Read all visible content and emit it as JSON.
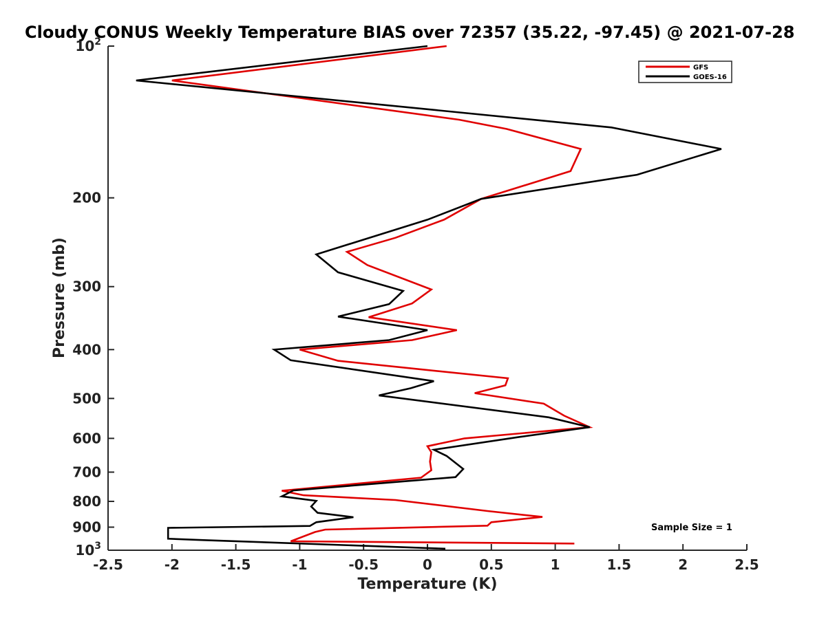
{
  "chart_data": {
    "type": "line",
    "title": "Cloudy CONUS Weekly Temperature BIAS over 72357 (35.22, -97.45) @ 2021-07-28",
    "xlabel": "Temperature (K)",
    "ylabel": "Pressure (mb)",
    "xlim": [
      -2.5,
      2.5
    ],
    "ylim": [
      100,
      1000
    ],
    "y_scale": "log",
    "y_reversed": true,
    "x_ticks": [
      "-2.5",
      "-2",
      "-1.5",
      "-1",
      "-0.5",
      "0",
      "0.5",
      "1",
      "1.5",
      "2",
      "2.5"
    ],
    "y_ticks": [
      {
        "value": 100,
        "base": "10",
        "exp": "2"
      },
      {
        "value": 200,
        "label": "200"
      },
      {
        "value": 300,
        "label": "300"
      },
      {
        "value": 400,
        "label": "400"
      },
      {
        "value": 500,
        "label": "500"
      },
      {
        "value": 600,
        "label": "600"
      },
      {
        "value": 700,
        "label": "700"
      },
      {
        "value": 800,
        "label": "800"
      },
      {
        "value": 900,
        "label": "900"
      },
      {
        "value": 1000,
        "base": "10",
        "exp": "3"
      }
    ],
    "legend_position": "top-right",
    "grid": false,
    "annotation": "Sample Size = 1",
    "series": [
      {
        "name": "GFS",
        "color": "#e00000",
        "points": [
          [
            0.15,
            100
          ],
          [
            -2.0,
            117
          ],
          [
            0.25,
            140
          ],
          [
            0.62,
            146
          ],
          [
            1.2,
            160
          ],
          [
            1.12,
            177
          ],
          [
            0.42,
            201
          ],
          [
            0.13,
            221
          ],
          [
            -0.25,
            240
          ],
          [
            -0.63,
            256
          ],
          [
            -0.47,
            272
          ],
          [
            0.03,
            304
          ],
          [
            -0.12,
            324
          ],
          [
            -0.46,
            345
          ],
          [
            0.23,
            366
          ],
          [
            -0.12,
            383
          ],
          [
            -1.0,
            400
          ],
          [
            -0.7,
            421
          ],
          [
            0.63,
            456
          ],
          [
            0.61,
            471
          ],
          [
            0.37,
            488
          ],
          [
            0.91,
            512
          ],
          [
            1.07,
            541
          ],
          [
            1.27,
            570
          ],
          [
            0.29,
            600
          ],
          [
            0.0,
            622
          ],
          [
            0.03,
            639
          ],
          [
            0.02,
            667
          ],
          [
            0.03,
            694
          ],
          [
            -0.05,
            718
          ],
          [
            -1.14,
            762
          ],
          [
            -0.97,
            778
          ],
          [
            -0.25,
            795
          ],
          [
            0.47,
            836
          ],
          [
            0.9,
            859
          ],
          [
            0.5,
            880
          ],
          [
            0.47,
            894
          ],
          [
            -0.8,
            910
          ],
          [
            -0.88,
            920
          ],
          [
            -1.07,
            960
          ],
          [
            1.15,
            970
          ]
        ]
      },
      {
        "name": "GOES-16",
        "color": "#000000",
        "points": [
          [
            0.0,
            100
          ],
          [
            -2.28,
            117
          ],
          [
            1.44,
            145
          ],
          [
            2.3,
            160
          ],
          [
            1.64,
            180
          ],
          [
            0.42,
            201
          ],
          [
            0.0,
            221
          ],
          [
            -0.87,
            259
          ],
          [
            -0.7,
            281
          ],
          [
            -0.19,
            306
          ],
          [
            -0.3,
            325
          ],
          [
            -0.7,
            344
          ],
          [
            0.0,
            366
          ],
          [
            -0.3,
            383
          ],
          [
            -1.2,
            400
          ],
          [
            -1.07,
            420
          ],
          [
            0.05,
            462
          ],
          [
            -0.13,
            477
          ],
          [
            -0.38,
            493
          ],
          [
            0.95,
            545
          ],
          [
            1.27,
            570
          ],
          [
            0.72,
            596
          ],
          [
            0.05,
            632
          ],
          [
            0.15,
            650
          ],
          [
            0.28,
            690
          ],
          [
            0.22,
            716
          ],
          [
            -1.05,
            761
          ],
          [
            -1.14,
            782
          ],
          [
            -0.87,
            798
          ],
          [
            -0.91,
            819
          ],
          [
            -0.86,
            843
          ],
          [
            -0.58,
            860
          ],
          [
            -0.87,
            880
          ],
          [
            -0.92,
            895
          ],
          [
            -2.03,
            903
          ],
          [
            -2.03,
            949
          ],
          [
            -1.75,
            955
          ],
          [
            0.14,
            993
          ]
        ]
      }
    ]
  }
}
